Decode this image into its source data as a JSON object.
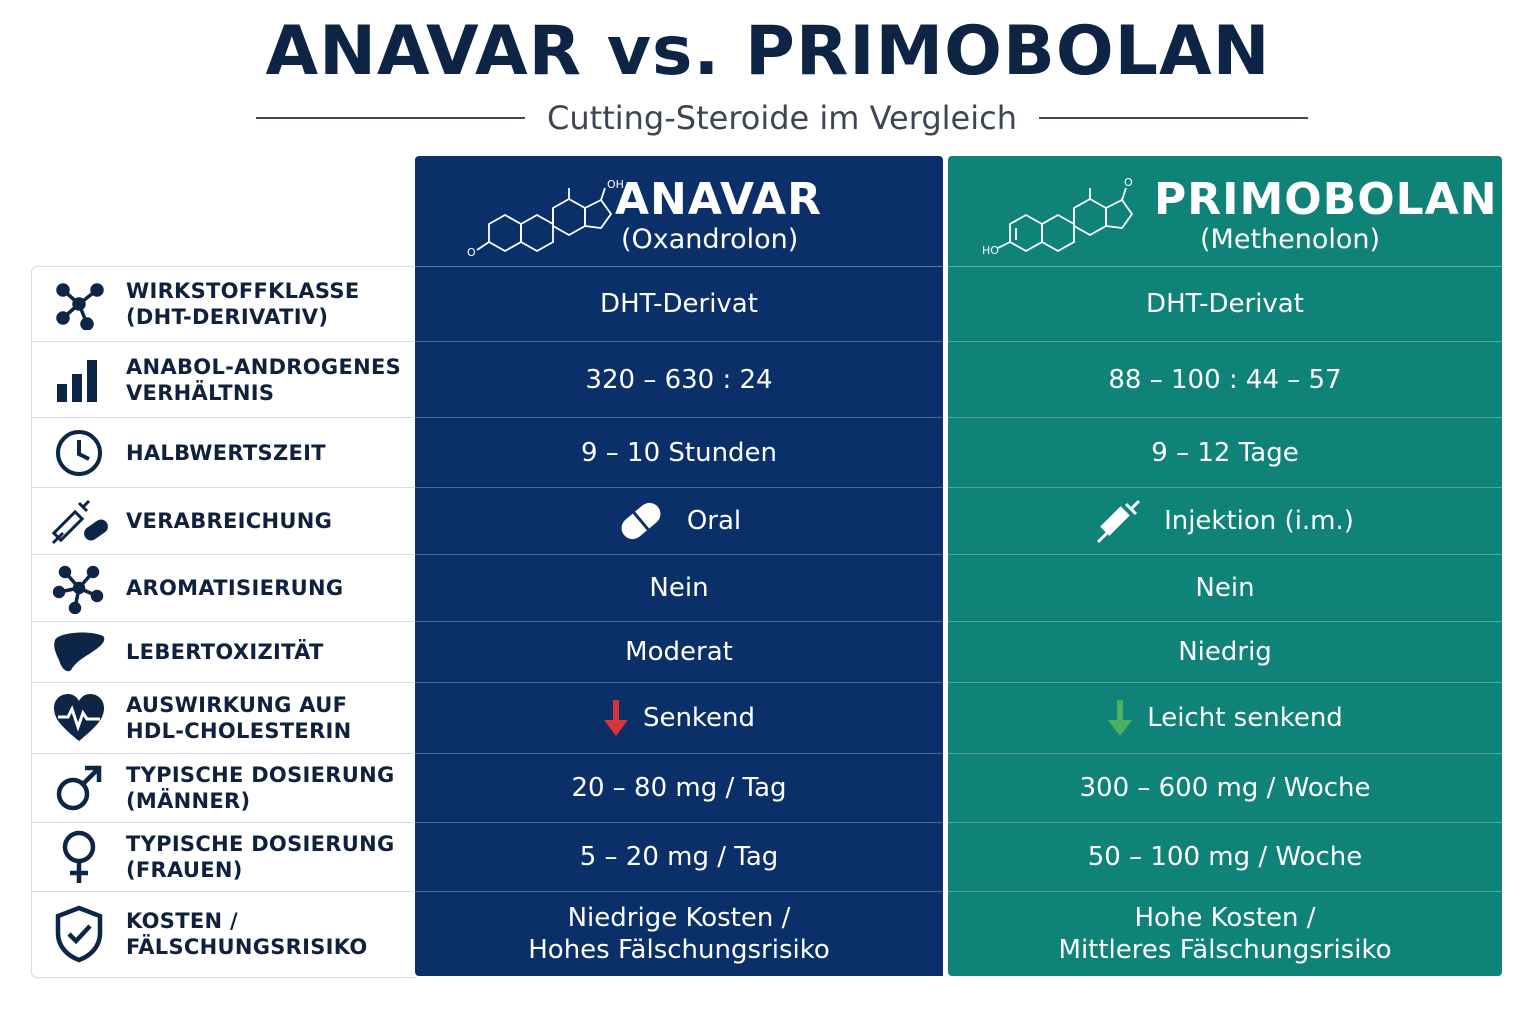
{
  "title": "ANAVAR vs. PRIMOBOLAN",
  "subtitle": "Cutting-Steroide im Vergleich",
  "columns": [
    {
      "name": "ANAVAR",
      "sub": "(Oxandrolon)",
      "molecule_labels": [
        "OH",
        "O"
      ],
      "color": "#0b3069"
    },
    {
      "name": "PRIMOBOLAN",
      "sub": "(Methenolon)",
      "molecule_labels": [
        "O",
        "HO"
      ],
      "color": "#0f8378"
    }
  ],
  "rows": [
    {
      "icon": "molecule-network-icon",
      "label": "WIRKSTOFFKLASSE\n(DHT-DERIVATIV)",
      "anavar": "DHT-Derivat",
      "primo": "DHT-Derivat"
    },
    {
      "icon": "bar-chart-icon",
      "label": "ANABOL-ANDROGENES\nVERHÄLTNIS",
      "anavar": "320 – 630 : 24",
      "primo": "88 – 100 : 44 – 57"
    },
    {
      "icon": "clock-icon",
      "label": "HALBWERTSZEIT",
      "anavar": "9 – 10 Stunden",
      "primo": "9 – 12 Tage"
    },
    {
      "icon": "syringe-pill-icon",
      "label": "VERABREICHUNG",
      "anavar": "Oral",
      "anavar_icon": "pill-icon",
      "primo": "Injektion (i.m.)",
      "primo_icon": "syringe-icon"
    },
    {
      "icon": "aromatization-icon",
      "label": "AROMATISIERUNG",
      "anavar": "Nein",
      "primo": "Nein"
    },
    {
      "icon": "liver-icon",
      "label": "LEBERTOXIZITÄT",
      "anavar": "Moderat",
      "primo": "Niedrig"
    },
    {
      "icon": "heart-pulse-icon",
      "label": "AUSWIRKUNG AUF\nHDL-CHOLESTERIN",
      "anavar": "Senkend",
      "anavar_icon": "arrow-down-red-icon",
      "primo": "Leicht senkend",
      "primo_icon": "arrow-down-green-icon"
    },
    {
      "icon": "male-symbol-icon",
      "label": "TYPISCHE DOSIERUNG\n(MÄNNER)",
      "anavar": "20 – 80 mg / Tag",
      "primo": "300 – 600 mg / Woche"
    },
    {
      "icon": "female-symbol-icon",
      "label": "TYPISCHE DOSIERUNG\n(FRAUEN)",
      "anavar": "5 – 20 mg / Tag",
      "primo": "50 – 100 mg / Woche"
    },
    {
      "icon": "shield-check-icon",
      "label": "KOSTEN /\nFÄLSCHUNGSRISIKO",
      "anavar": "Niedrige Kosten /\nHohes Fälschungsrisiko",
      "primo": "Hohe Kosten /\nMittleres Fälschungsrisiko"
    }
  ],
  "colors": {
    "navy": "#0b3069",
    "teal": "#0f8378",
    "arrow_red": "#d8323a",
    "arrow_green": "#4caf66",
    "icon": "#0d2546"
  }
}
